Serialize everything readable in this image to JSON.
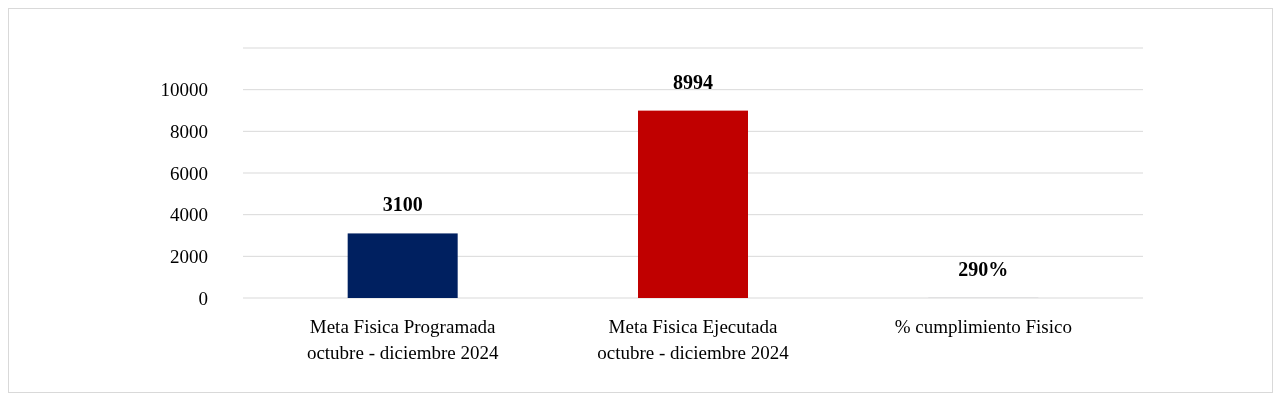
{
  "chart_data": {
    "type": "bar",
    "categories": [
      "Meta Fisica Programada octubre - diciembre 2024",
      "Meta Fisica Ejecutada octubre - diciembre 2024",
      "% cumplimiento Fisico"
    ],
    "values": [
      3100,
      8994,
      2.9
    ],
    "colors": [
      "#002060",
      "#c00000",
      "#263340"
    ],
    "value_labels": [
      "3100",
      "8994",
      "290%"
    ],
    "ylim": [
      0,
      12000
    ],
    "yticks": [
      0,
      2000,
      4000,
      6000,
      8000,
      10000
    ],
    "grid": true
  }
}
